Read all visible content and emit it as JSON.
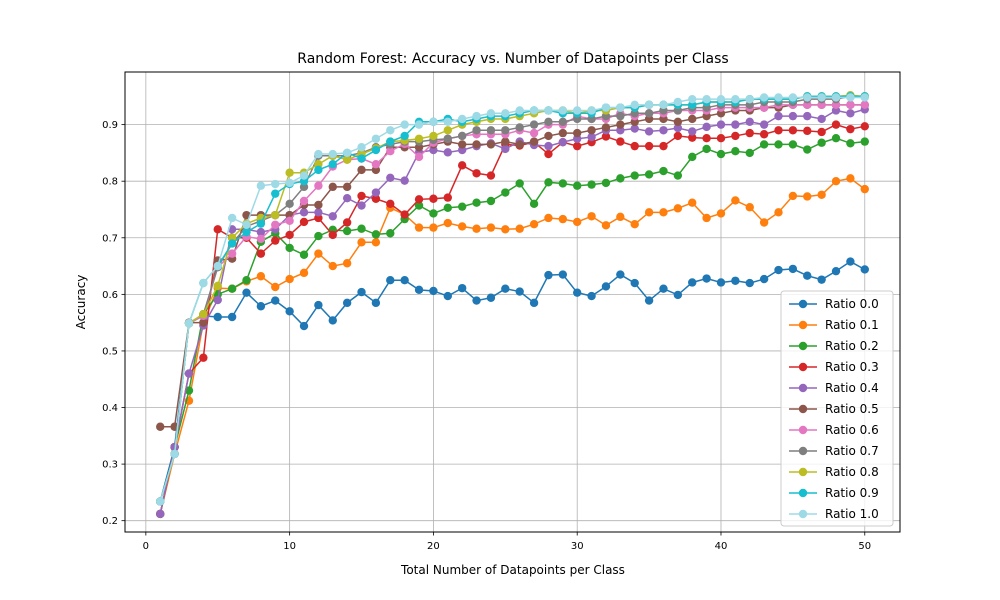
{
  "chart_data": {
    "type": "line",
    "title": "Random Forest: Accuracy vs. Number of Datapoints per Class",
    "xlabel": "Total Number of Datapoints per Class",
    "ylabel": "Accuracy",
    "xlim": [
      -1.45,
      52.45
    ],
    "ylim": [
      0.18,
      0.993
    ],
    "xticks": [
      0,
      10,
      20,
      30,
      40,
      50
    ],
    "yticks": [
      0.2,
      0.3,
      0.4,
      0.5,
      0.6,
      0.7,
      0.8,
      0.9
    ],
    "grid": true,
    "marker": "circle",
    "legend_position": "lower-right",
    "x": [
      1,
      2,
      3,
      4,
      5,
      6,
      7,
      8,
      9,
      10,
      11,
      12,
      13,
      14,
      15,
      16,
      17,
      18,
      19,
      20,
      21,
      22,
      23,
      24,
      25,
      26,
      27,
      28,
      29,
      30,
      31,
      32,
      33,
      34,
      35,
      36,
      37,
      38,
      39,
      40,
      41,
      42,
      43,
      44,
      45,
      46,
      47,
      48,
      49,
      50
    ],
    "series": [
      {
        "name": "Ratio 0.0",
        "color": "#1f77b4",
        "values": [
          0.234,
          0.33,
          0.549,
          0.562,
          0.56,
          0.56,
          0.603,
          0.579,
          0.589,
          0.57,
          0.544,
          0.581,
          0.554,
          0.585,
          0.604,
          0.585,
          0.625,
          0.625,
          0.608,
          0.606,
          0.597,
          0.611,
          0.589,
          0.594,
          0.61,
          0.605,
          0.585,
          0.634,
          0.635,
          0.603,
          0.597,
          0.614,
          0.635,
          0.62,
          0.589,
          0.61,
          0.599,
          0.621,
          0.628,
          0.621,
          0.624,
          0.62,
          0.627,
          0.643,
          0.645,
          0.633,
          0.626,
          0.641,
          0.658,
          0.644
        ]
      },
      {
        "name": "Ratio 0.1",
        "color": "#ff7f0e",
        "values": [
          0.212,
          0.318,
          0.412,
          0.55,
          0.611,
          0.61,
          0.623,
          0.632,
          0.613,
          0.627,
          0.638,
          0.672,
          0.65,
          0.655,
          0.692,
          0.692,
          0.753,
          0.741,
          0.718,
          0.718,
          0.726,
          0.72,
          0.716,
          0.718,
          0.715,
          0.716,
          0.724,
          0.735,
          0.733,
          0.728,
          0.738,
          0.722,
          0.737,
          0.724,
          0.745,
          0.745,
          0.752,
          0.762,
          0.735,
          0.743,
          0.766,
          0.754,
          0.727,
          0.745,
          0.774,
          0.773,
          0.776,
          0.8,
          0.805,
          0.786
        ]
      },
      {
        "name": "Ratio 0.2",
        "color": "#2ca02c",
        "values": [
          0.212,
          0.33,
          0.43,
          0.565,
          0.6,
          0.61,
          0.625,
          0.693,
          0.708,
          0.682,
          0.67,
          0.703,
          0.714,
          0.712,
          0.716,
          0.706,
          0.708,
          0.733,
          0.757,
          0.743,
          0.753,
          0.755,
          0.762,
          0.765,
          0.78,
          0.796,
          0.76,
          0.798,
          0.796,
          0.792,
          0.794,
          0.797,
          0.805,
          0.81,
          0.812,
          0.818,
          0.81,
          0.843,
          0.857,
          0.848,
          0.853,
          0.85,
          0.865,
          0.865,
          0.865,
          0.856,
          0.868,
          0.876,
          0.867,
          0.87
        ]
      },
      {
        "name": "Ratio 0.3",
        "color": "#d62728",
        "values": [
          0.212,
          0.33,
          0.46,
          0.488,
          0.715,
          0.7,
          0.7,
          0.672,
          0.695,
          0.705,
          0.728,
          0.735,
          0.705,
          0.727,
          0.774,
          0.769,
          0.76,
          0.741,
          0.768,
          0.769,
          0.771,
          0.828,
          0.814,
          0.81,
          0.865,
          0.863,
          0.869,
          0.848,
          0.869,
          0.862,
          0.869,
          0.879,
          0.87,
          0.862,
          0.862,
          0.862,
          0.88,
          0.877,
          0.876,
          0.876,
          0.88,
          0.885,
          0.883,
          0.89,
          0.89,
          0.889,
          0.887,
          0.9,
          0.892,
          0.897
        ]
      },
      {
        "name": "Ratio 0.4",
        "color": "#9467bd",
        "values": [
          0.212,
          0.33,
          0.46,
          0.545,
          0.59,
          0.715,
          0.715,
          0.71,
          0.715,
          0.74,
          0.745,
          0.745,
          0.738,
          0.77,
          0.757,
          0.78,
          0.806,
          0.801,
          0.851,
          0.855,
          0.851,
          0.855,
          0.862,
          0.867,
          0.857,
          0.87,
          0.864,
          0.862,
          0.869,
          0.875,
          0.878,
          0.89,
          0.89,
          0.893,
          0.888,
          0.89,
          0.894,
          0.888,
          0.896,
          0.9,
          0.9,
          0.905,
          0.9,
          0.915,
          0.915,
          0.915,
          0.91,
          0.925,
          0.92,
          0.927
        ]
      },
      {
        "name": "Ratio 0.5",
        "color": "#8c564b",
        "values": [
          0.366,
          0.366,
          0.55,
          0.55,
          0.66,
          0.663,
          0.74,
          0.74,
          0.74,
          0.74,
          0.758,
          0.758,
          0.79,
          0.79,
          0.82,
          0.82,
          0.86,
          0.86,
          0.86,
          0.865,
          0.87,
          0.865,
          0.865,
          0.865,
          0.87,
          0.865,
          0.87,
          0.88,
          0.885,
          0.885,
          0.89,
          0.895,
          0.9,
          0.905,
          0.91,
          0.91,
          0.905,
          0.91,
          0.915,
          0.92,
          0.925,
          0.925,
          0.93,
          0.93,
          0.935,
          0.935,
          0.935,
          0.935,
          0.935,
          0.935
        ]
      },
      {
        "name": "Ratio 0.6",
        "color": "#e377c2",
        "values": [
          0.234,
          0.318,
          0.549,
          0.562,
          0.648,
          0.672,
          0.702,
          0.698,
          0.723,
          0.73,
          0.765,
          0.792,
          0.826,
          0.838,
          0.84,
          0.83,
          0.853,
          0.866,
          0.843,
          0.868,
          0.875,
          0.88,
          0.883,
          0.883,
          0.883,
          0.89,
          0.885,
          0.9,
          0.9,
          0.915,
          0.91,
          0.91,
          0.92,
          0.915,
          0.92,
          0.92,
          0.925,
          0.925,
          0.925,
          0.93,
          0.93,
          0.93,
          0.93,
          0.935,
          0.935,
          0.935,
          0.935,
          0.935,
          0.935,
          0.935
        ]
      },
      {
        "name": "Ratio 0.7",
        "color": "#7f7f7f",
        "values": [
          0.234,
          0.318,
          0.549,
          0.565,
          0.648,
          0.69,
          0.72,
          0.73,
          0.74,
          0.76,
          0.79,
          0.845,
          0.845,
          0.845,
          0.85,
          0.86,
          0.865,
          0.87,
          0.87,
          0.873,
          0.875,
          0.88,
          0.89,
          0.89,
          0.89,
          0.895,
          0.9,
          0.905,
          0.905,
          0.91,
          0.91,
          0.915,
          0.915,
          0.92,
          0.92,
          0.925,
          0.925,
          0.93,
          0.93,
          0.935,
          0.935,
          0.935,
          0.94,
          0.94,
          0.94,
          0.945,
          0.945,
          0.945,
          0.95,
          0.95
        ]
      },
      {
        "name": "Ratio 0.8",
        "color": "#bcbd22",
        "values": [
          0.234,
          0.318,
          0.549,
          0.565,
          0.615,
          0.7,
          0.725,
          0.735,
          0.74,
          0.815,
          0.815,
          0.83,
          0.845,
          0.838,
          0.848,
          0.858,
          0.87,
          0.872,
          0.875,
          0.88,
          0.89,
          0.9,
          0.905,
          0.91,
          0.91,
          0.915,
          0.92,
          0.925,
          0.925,
          0.92,
          0.925,
          0.925,
          0.93,
          0.93,
          0.935,
          0.935,
          0.935,
          0.935,
          0.94,
          0.94,
          0.94,
          0.945,
          0.945,
          0.945,
          0.945,
          0.95,
          0.95,
          0.95,
          0.952,
          0.95
        ]
      },
      {
        "name": "Ratio 0.9",
        "color": "#17becf",
        "values": [
          0.234,
          0.318,
          0.549,
          0.62,
          0.65,
          0.69,
          0.71,
          0.725,
          0.778,
          0.795,
          0.8,
          0.82,
          0.83,
          0.85,
          0.84,
          0.855,
          0.87,
          0.88,
          0.905,
          0.905,
          0.91,
          0.905,
          0.91,
          0.915,
          0.915,
          0.92,
          0.925,
          0.925,
          0.92,
          0.92,
          0.92,
          0.93,
          0.93,
          0.93,
          0.935,
          0.935,
          0.935,
          0.935,
          0.94,
          0.94,
          0.94,
          0.945,
          0.945,
          0.945,
          0.945,
          0.95,
          0.95,
          0.95,
          0.95,
          0.95
        ]
      },
      {
        "name": "Ratio 1.0",
        "color": "#9edae5",
        "values": [
          0.234,
          0.318,
          0.549,
          0.62,
          0.65,
          0.735,
          0.723,
          0.792,
          0.795,
          0.797,
          0.81,
          0.848,
          0.848,
          0.85,
          0.86,
          0.875,
          0.89,
          0.9,
          0.9,
          0.905,
          0.905,
          0.91,
          0.915,
          0.92,
          0.92,
          0.925,
          0.925,
          0.925,
          0.925,
          0.925,
          0.925,
          0.93,
          0.93,
          0.935,
          0.935,
          0.935,
          0.94,
          0.945,
          0.945,
          0.945,
          0.945,
          0.945,
          0.948,
          0.948,
          0.948,
          0.948,
          0.948,
          0.948,
          0.948,
          0.948
        ]
      }
    ]
  }
}
